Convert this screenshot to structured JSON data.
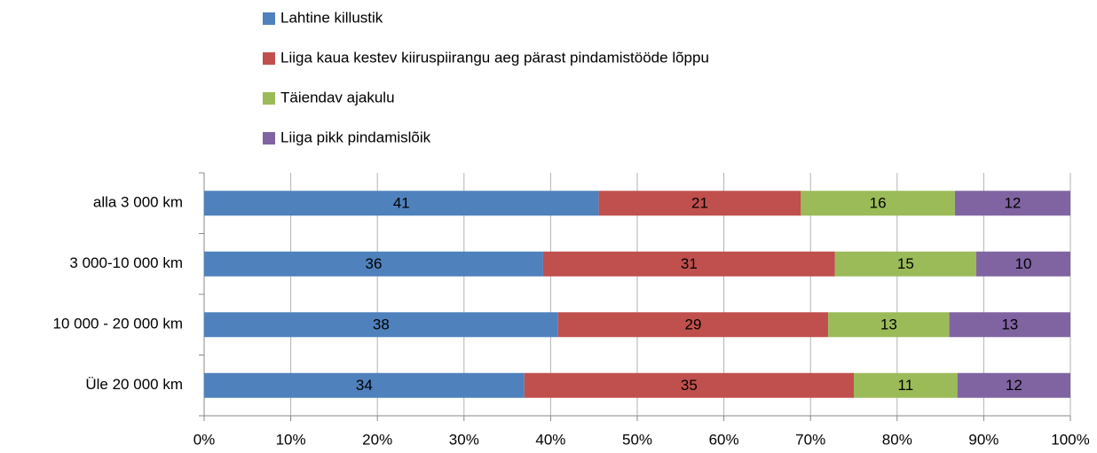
{
  "chart_data": {
    "type": "bar",
    "orientation": "horizontal",
    "stacking": "percent",
    "categories": [
      "alla 3 000 km",
      "3 000-10 000 km",
      "10 000 - 20 000 km",
      "Üle 20 000 km"
    ],
    "series": [
      {
        "name": "Lahtine killustik",
        "color": "#4f81bd",
        "values": [
          41,
          36,
          38,
          34
        ]
      },
      {
        "name": "Liiga kaua kestev kiiruspiirangu aeg pärast pindamistööde lõppu",
        "color": "#c0504d",
        "values": [
          21,
          31,
          29,
          35
        ]
      },
      {
        "name": "Täiendav ajakulu",
        "color": "#9bbb59",
        "values": [
          16,
          15,
          13,
          11
        ]
      },
      {
        "name": "Liiga pikk pindamislõik",
        "color": "#8064a2",
        "values": [
          12,
          10,
          13,
          12
        ]
      }
    ],
    "xlim": [
      0,
      100
    ],
    "xticks": [
      {
        "value": 0,
        "label": "0%"
      },
      {
        "value": 10,
        "label": "10%"
      },
      {
        "value": 20,
        "label": "20%"
      },
      {
        "value": 30,
        "label": "30%"
      },
      {
        "value": 40,
        "label": "40%"
      },
      {
        "value": 50,
        "label": "50%"
      },
      {
        "value": 60,
        "label": "60%"
      },
      {
        "value": 70,
        "label": "70%"
      },
      {
        "value": 80,
        "label": "80%"
      },
      {
        "value": 90,
        "label": "90%"
      },
      {
        "value": 100,
        "label": "100%"
      }
    ],
    "grid": true,
    "legend": "top"
  }
}
